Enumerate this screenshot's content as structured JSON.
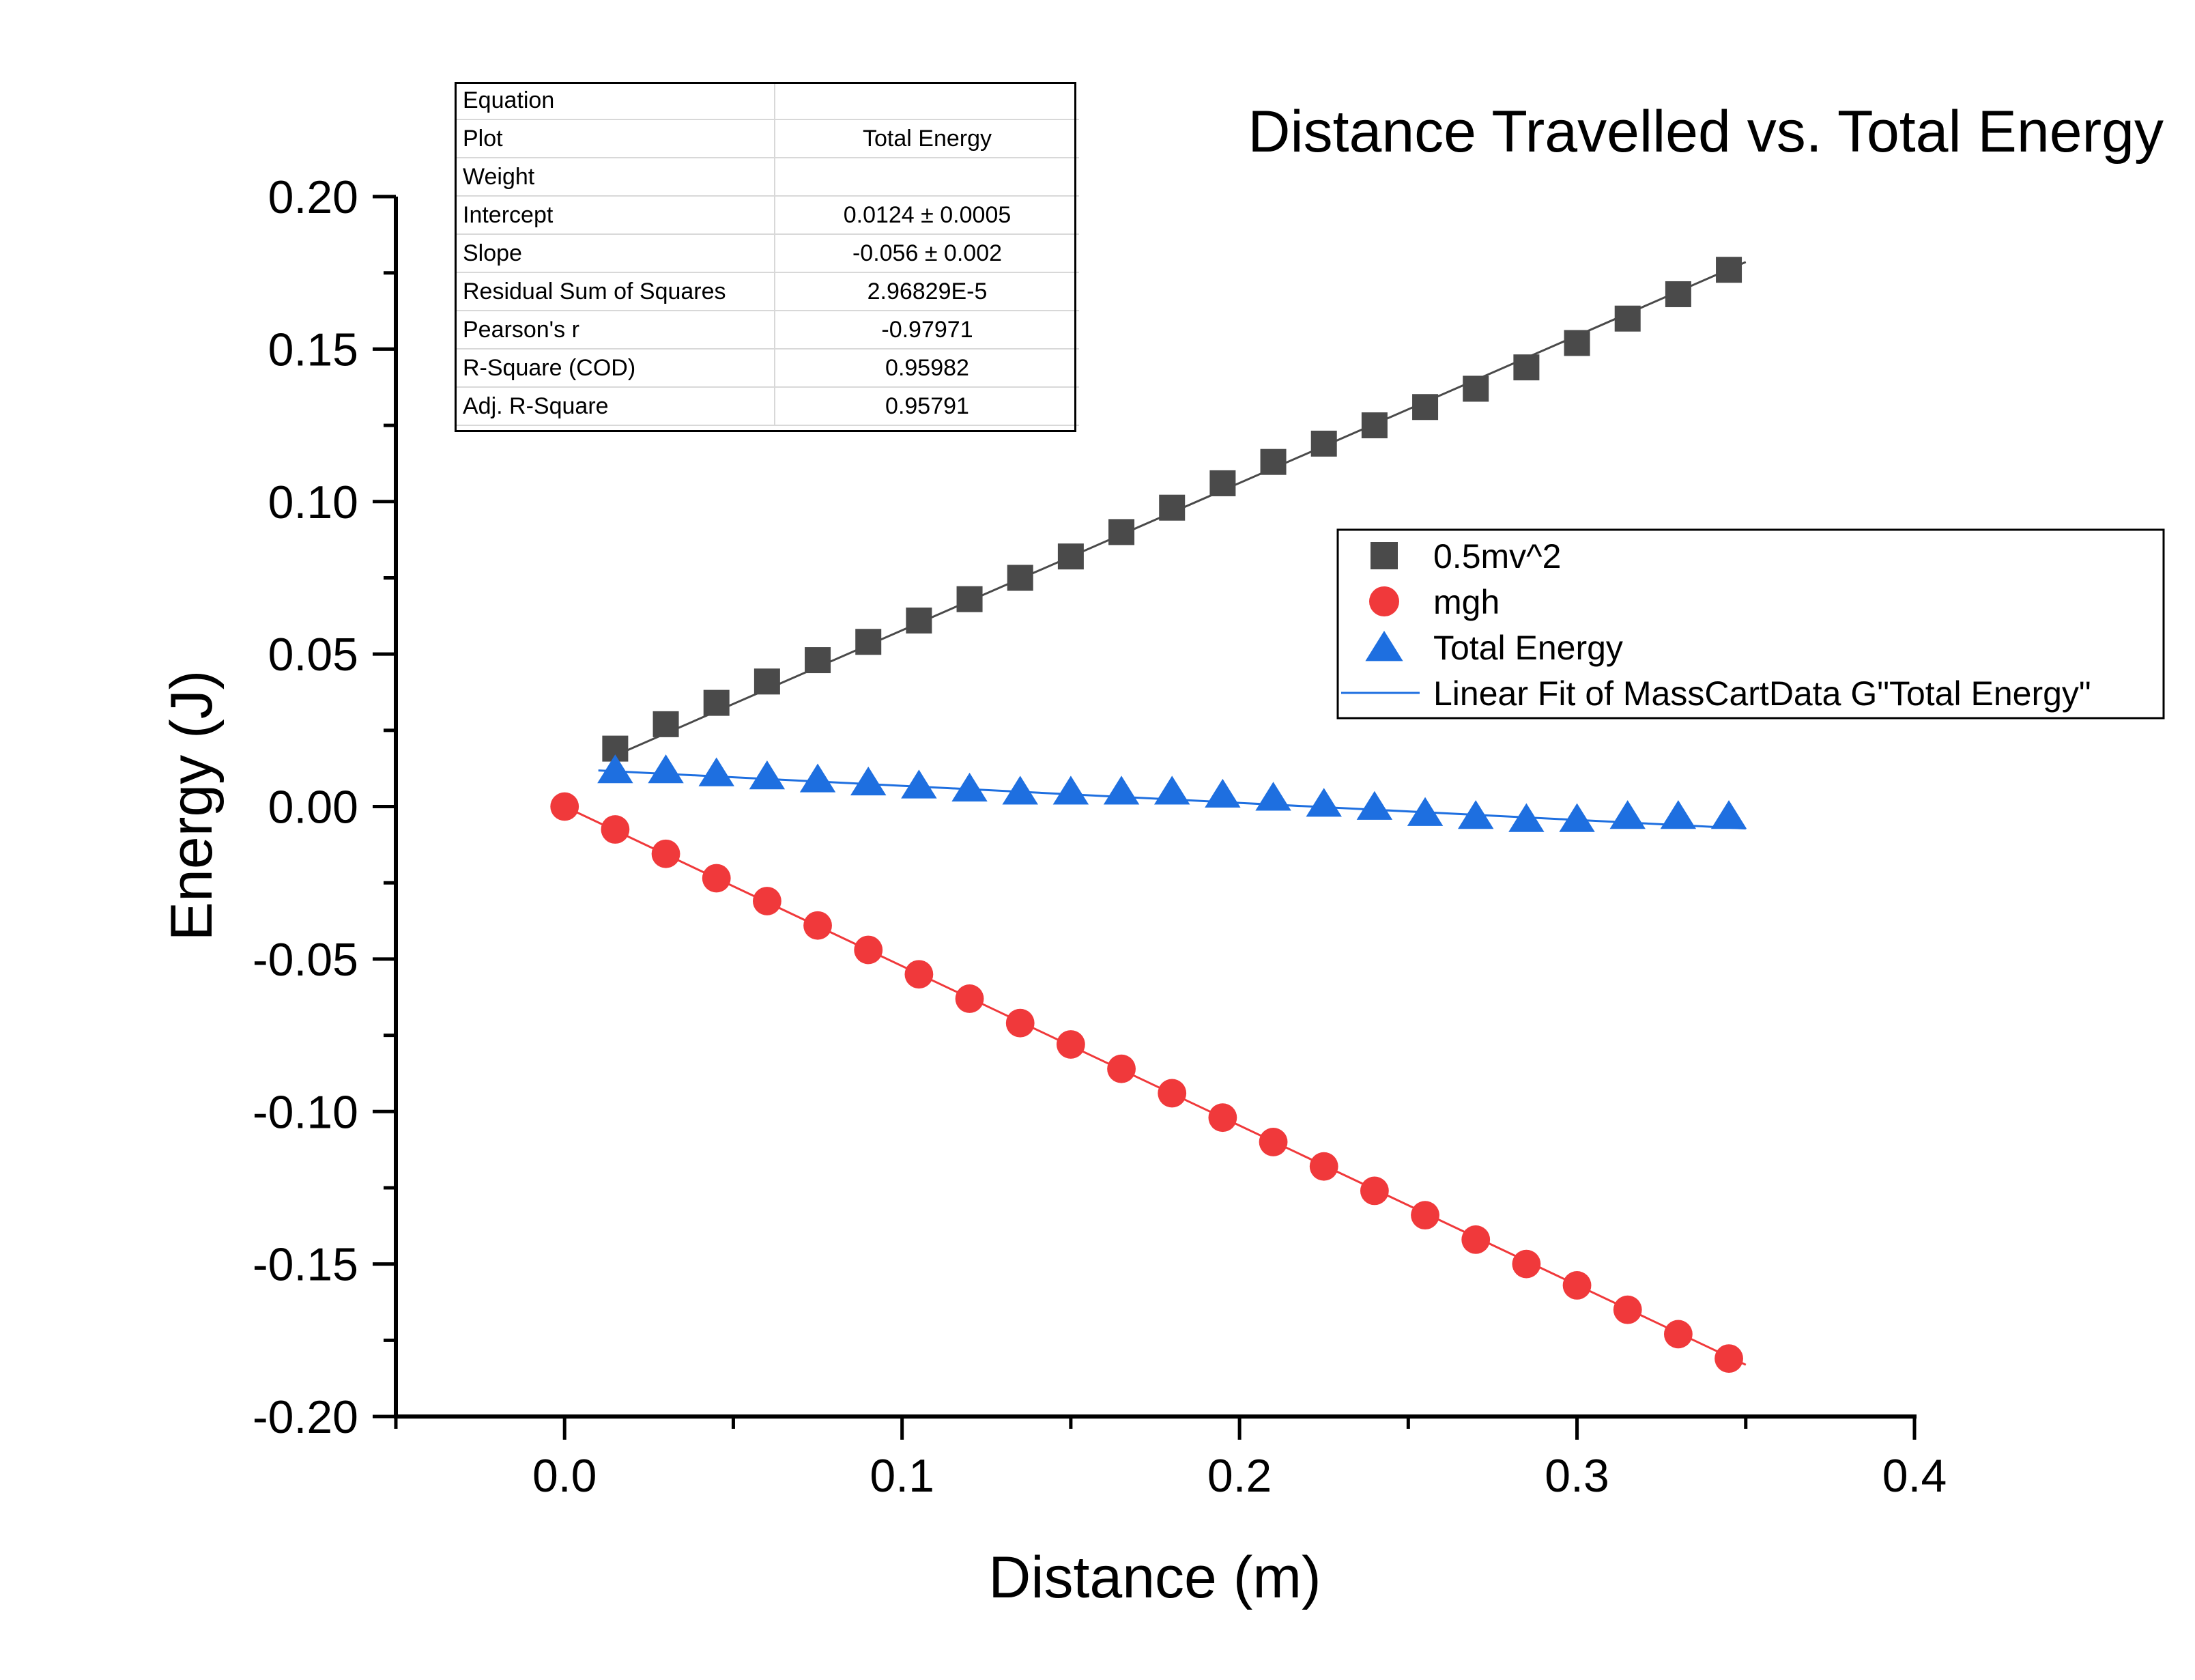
{
  "chart_data": {
    "type": "scatter",
    "title": "Distance Travelled vs. Total Energy",
    "xlabel": "Distance (m)",
    "ylabel": "Energy (J)",
    "xlim": [
      -0.05,
      0.4
    ],
    "ylim": [
      -0.2,
      0.2
    ],
    "x_ticks": [
      "0.0",
      "0.1",
      "0.2",
      "0.3",
      "0.4"
    ],
    "y_ticks": [
      "0.20",
      "0.15",
      "0.10",
      "0.05",
      "0.00",
      "-0.05",
      "-0.10",
      "-0.15",
      "-0.20"
    ],
    "grid": false,
    "legend_position": "right",
    "series": [
      {
        "name": "0.5mv^2",
        "marker": "square",
        "color": "#4a4a4a",
        "x": [
          0.015,
          0.03,
          0.045,
          0.06,
          0.075,
          0.09,
          0.105,
          0.12,
          0.135,
          0.15,
          0.165,
          0.18,
          0.195,
          0.21,
          0.225,
          0.24,
          0.255,
          0.27,
          0.285,
          0.3,
          0.315,
          0.33,
          0.345
        ],
        "y": [
          0.019,
          0.027,
          0.034,
          0.041,
          0.048,
          0.054,
          0.061,
          0.068,
          0.075,
          0.082,
          0.09,
          0.098,
          0.106,
          0.113,
          0.119,
          0.125,
          0.131,
          0.137,
          0.144,
          0.152,
          0.16,
          0.168,
          0.176
        ]
      },
      {
        "name": "mgh",
        "marker": "circle",
        "color": "#f0393b",
        "x": [
          0.0,
          0.015,
          0.03,
          0.045,
          0.06,
          0.075,
          0.09,
          0.105,
          0.12,
          0.135,
          0.15,
          0.165,
          0.18,
          0.195,
          0.21,
          0.225,
          0.24,
          0.255,
          0.27,
          0.285,
          0.3,
          0.315,
          0.33,
          0.345
        ],
        "y": [
          0.0,
          -0.0075,
          -0.0155,
          -0.0235,
          -0.031,
          -0.039,
          -0.047,
          -0.055,
          -0.063,
          -0.071,
          -0.078,
          -0.086,
          -0.094,
          -0.102,
          -0.11,
          -0.118,
          -0.126,
          -0.134,
          -0.142,
          -0.15,
          -0.157,
          -0.165,
          -0.173,
          -0.181
        ]
      },
      {
        "name": "Total Energy",
        "marker": "triangle",
        "color": "#1e6fe0",
        "x": [
          0.015,
          0.03,
          0.045,
          0.06,
          0.075,
          0.09,
          0.105,
          0.12,
          0.135,
          0.15,
          0.165,
          0.18,
          0.195,
          0.21,
          0.225,
          0.24,
          0.255,
          0.27,
          0.285,
          0.3,
          0.315,
          0.33,
          0.345
        ],
        "y": [
          0.012,
          0.012,
          0.011,
          0.01,
          0.009,
          0.008,
          0.007,
          0.006,
          0.005,
          0.005,
          0.005,
          0.005,
          0.004,
          0.003,
          0.001,
          0.0,
          -0.002,
          -0.003,
          -0.004,
          -0.004,
          -0.003,
          -0.003,
          -0.003
        ]
      }
    ],
    "fit_lines": [
      {
        "series": "0.5mv^2",
        "color": "#4a4a4a",
        "intercept": 0.0095,
        "slope": 0.483,
        "x_range": [
          0.015,
          0.35
        ]
      },
      {
        "series": "mgh",
        "color": "#f0393b",
        "intercept": 0.0,
        "slope": -0.523,
        "x_range": [
          0.0,
          0.35
        ]
      },
      {
        "series": "Total Energy",
        "color": "#1e6fe0",
        "intercept": 0.0124,
        "slope": -0.056,
        "x_range": [
          0.01,
          0.35
        ]
      }
    ],
    "legend": [
      {
        "label": "0.5mv^2",
        "marker": "square",
        "color": "#4a4a4a"
      },
      {
        "label": "mgh",
        "marker": "circle",
        "color": "#f0393b"
      },
      {
        "label": "Total Energy",
        "marker": "triangle",
        "color": "#1e6fe0"
      },
      {
        "label": "Linear Fit of MassCartData G\"Total Energy\"",
        "marker": "line",
        "color": "#1e6fe0"
      }
    ]
  },
  "fit_table": {
    "rows": [
      {
        "label": "Equation",
        "value": ""
      },
      {
        "label": "Plot",
        "value": "Total Energy"
      },
      {
        "label": "Weight",
        "value": ""
      },
      {
        "label": "Intercept",
        "value": "0.0124 ± 0.0005"
      },
      {
        "label": "Slope",
        "value": "-0.056 ± 0.002"
      },
      {
        "label": "Residual Sum of Squares",
        "value": "2.96829E-5"
      },
      {
        "label": "Pearson's r",
        "value": "-0.97971"
      },
      {
        "label": "R-Square (COD)",
        "value": "0.95982"
      },
      {
        "label": "Adj. R-Square",
        "value": "0.95791"
      }
    ]
  }
}
